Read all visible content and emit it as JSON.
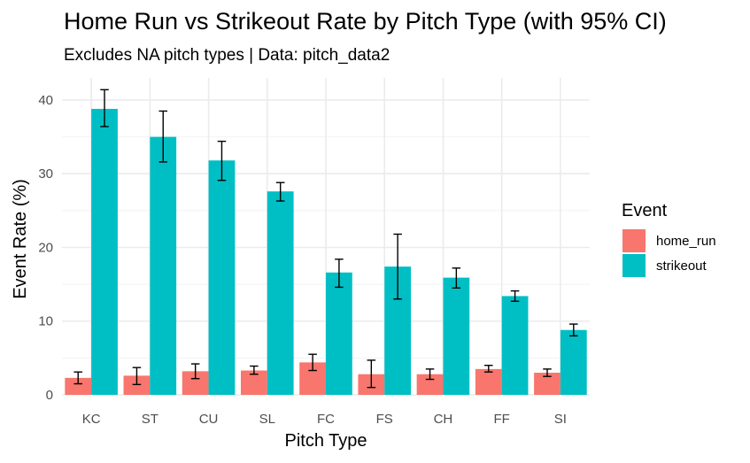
{
  "chart_data": {
    "type": "bar",
    "title": "Home Run vs Strikeout Rate by Pitch Type (with 95% CI)",
    "subtitle": "Excludes NA pitch types | Data: pitch_data2",
    "xlabel": "Pitch Type",
    "ylabel": "Event Rate (%)",
    "ylim": [
      0,
      43
    ],
    "yticks": [
      0,
      10,
      20,
      30,
      40
    ],
    "grid": true,
    "legend_position": "right",
    "legend_title": "Event",
    "categories": [
      "KC",
      "ST",
      "CU",
      "SL",
      "FC",
      "FS",
      "CH",
      "FF",
      "SI"
    ],
    "series": [
      {
        "name": "home_run",
        "color": "#F8766D",
        "values": [
          2.3,
          2.6,
          3.2,
          3.3,
          4.4,
          2.8,
          2.8,
          3.5,
          3.0
        ],
        "ci_low": [
          1.5,
          1.4,
          2.2,
          2.8,
          3.3,
          1.0,
          2.1,
          3.1,
          2.5
        ],
        "ci_high": [
          3.1,
          3.7,
          4.2,
          3.9,
          5.5,
          4.7,
          3.5,
          4.0,
          3.5
        ]
      },
      {
        "name": "strikeout",
        "color": "#00BFC4",
        "values": [
          38.8,
          35.0,
          31.8,
          27.6,
          16.6,
          17.4,
          15.9,
          13.4,
          8.8
        ],
        "ci_low": [
          36.4,
          31.6,
          29.1,
          26.3,
          14.6,
          13.0,
          14.5,
          12.7,
          8.0
        ],
        "ci_high": [
          41.4,
          38.5,
          34.4,
          28.8,
          18.4,
          21.8,
          17.2,
          14.1,
          9.6
        ]
      }
    ]
  }
}
